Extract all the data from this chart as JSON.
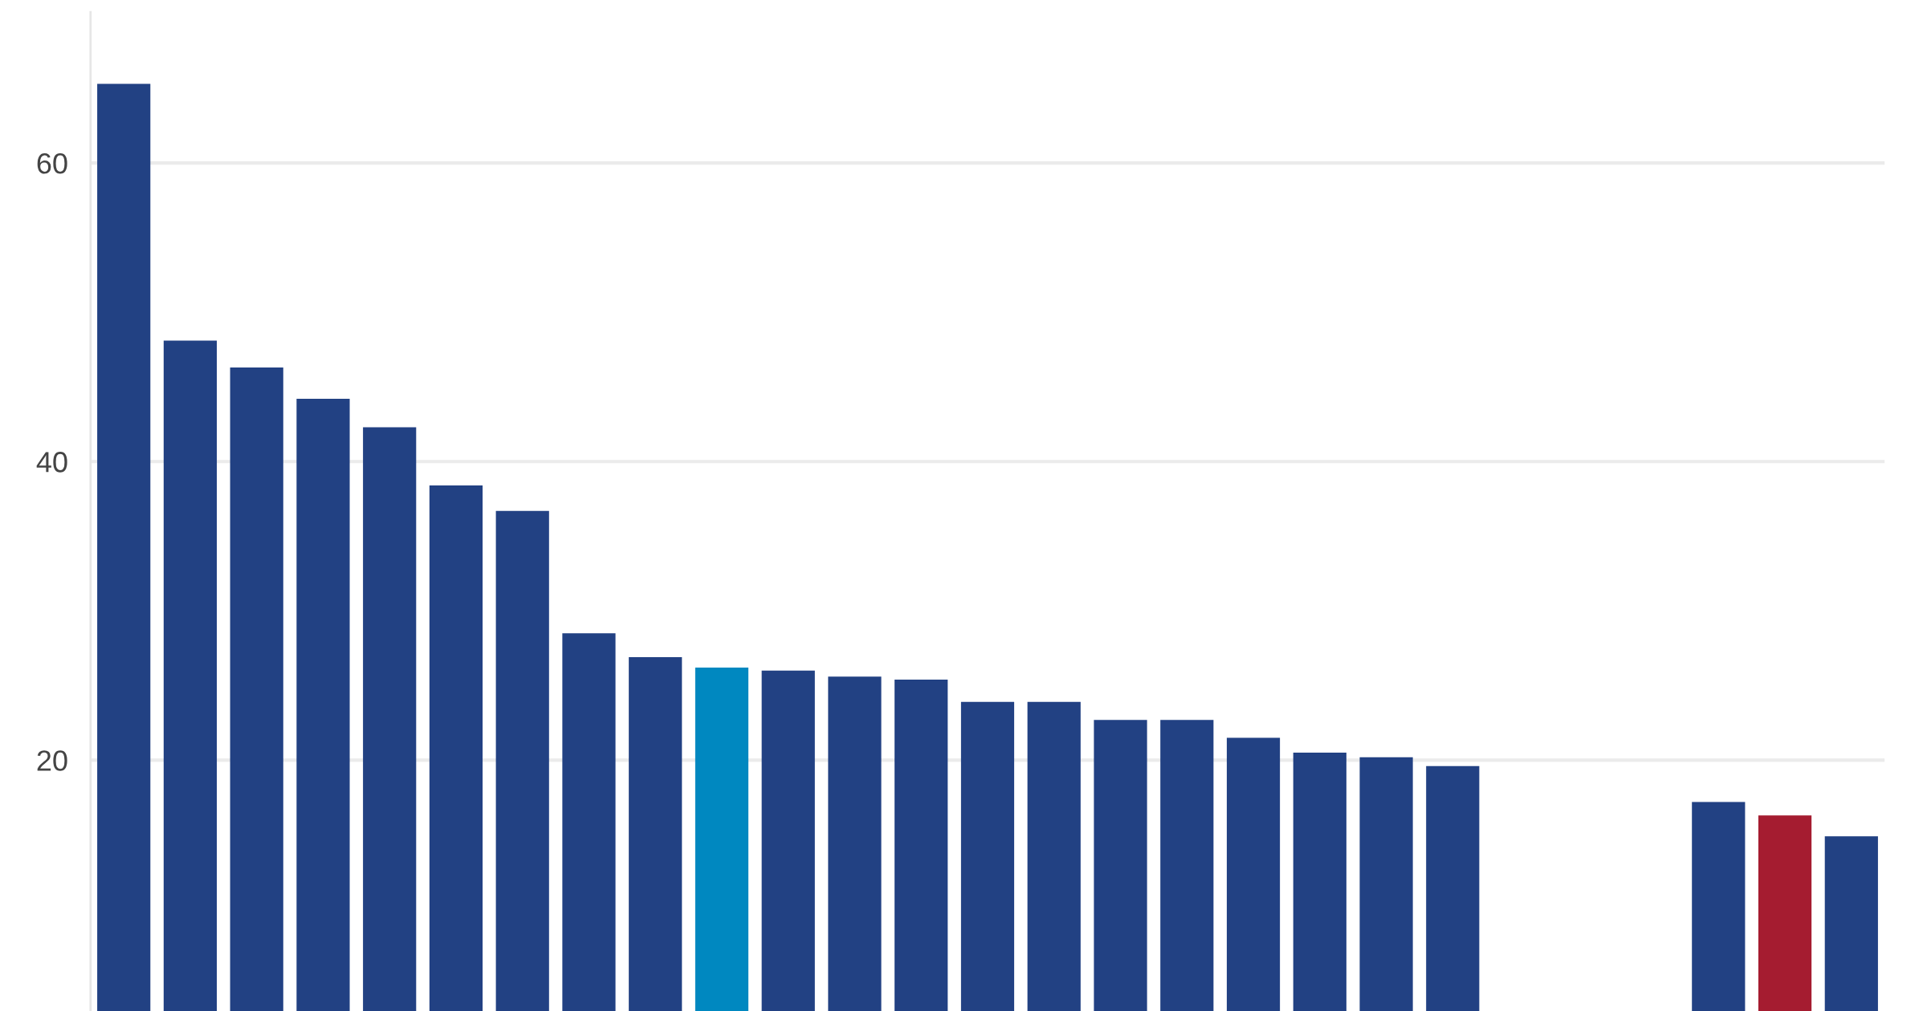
{
  "chart_data": {
    "type": "bar",
    "categories": [
      null,
      null,
      null,
      null,
      null,
      null,
      null,
      null,
      null,
      null,
      null,
      null,
      null,
      null,
      null,
      null,
      null,
      null,
      null,
      null,
      null,
      null,
      null,
      null,
      null,
      null,
      null
    ],
    "values": [
      65.3,
      48.1,
      46.3,
      44.2,
      42.3,
      38.4,
      36.7,
      28.5,
      26.9,
      26.2,
      26.0,
      25.6,
      25.4,
      23.9,
      23.9,
      22.7,
      22.7,
      21.5,
      20.5,
      20.2,
      19.6,
      null,
      null,
      null,
      17.2,
      16.3,
      14.9
    ],
    "colors": [
      "#224183",
      "#224183",
      "#224183",
      "#224183",
      "#224183",
      "#224183",
      "#224183",
      "#224183",
      "#224183",
      "#0088c0",
      "#224183",
      "#224183",
      "#224183",
      "#224183",
      "#224183",
      "#224183",
      "#224183",
      "#224183",
      "#224183",
      "#224183",
      "#224183",
      "#224183",
      "#224183",
      "#224183",
      "#224183",
      "#a51c30",
      "#224183"
    ],
    "ylim": [
      3.2,
      70.1
    ],
    "yticks": [
      20,
      40,
      60
    ],
    "grid": "y"
  }
}
